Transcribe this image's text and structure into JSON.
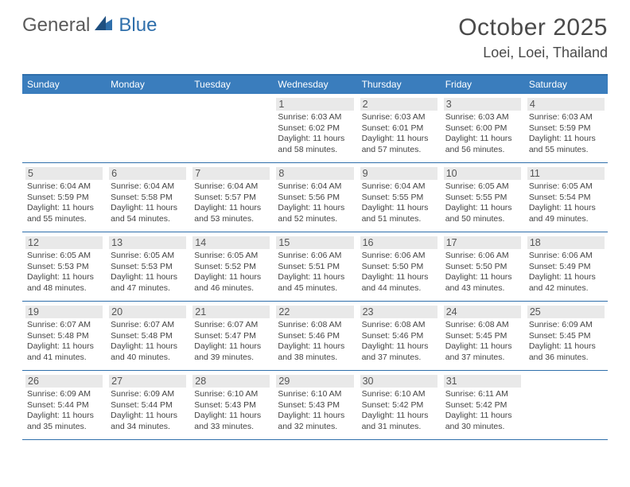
{
  "logo": {
    "part1": "General",
    "part2": "Blue"
  },
  "title": "October 2025",
  "location": "Loei, Loei, Thailand",
  "colors": {
    "header_bg": "#3a7dbd",
    "rule": "#2f6fab",
    "day_num_bg": "#e9e9e9",
    "text": "#444",
    "title_text": "#4a4a4a"
  },
  "weekdays": [
    "Sunday",
    "Monday",
    "Tuesday",
    "Wednesday",
    "Thursday",
    "Friday",
    "Saturday"
  ],
  "weeks": [
    [
      null,
      null,
      null,
      {
        "n": "1",
        "sr": "6:03 AM",
        "ss": "6:02 PM",
        "dl": "11 hours and 58 minutes."
      },
      {
        "n": "2",
        "sr": "6:03 AM",
        "ss": "6:01 PM",
        "dl": "11 hours and 57 minutes."
      },
      {
        "n": "3",
        "sr": "6:03 AM",
        "ss": "6:00 PM",
        "dl": "11 hours and 56 minutes."
      },
      {
        "n": "4",
        "sr": "6:03 AM",
        "ss": "5:59 PM",
        "dl": "11 hours and 55 minutes."
      }
    ],
    [
      {
        "n": "5",
        "sr": "6:04 AM",
        "ss": "5:59 PM",
        "dl": "11 hours and 55 minutes."
      },
      {
        "n": "6",
        "sr": "6:04 AM",
        "ss": "5:58 PM",
        "dl": "11 hours and 54 minutes."
      },
      {
        "n": "7",
        "sr": "6:04 AM",
        "ss": "5:57 PM",
        "dl": "11 hours and 53 minutes."
      },
      {
        "n": "8",
        "sr": "6:04 AM",
        "ss": "5:56 PM",
        "dl": "11 hours and 52 minutes."
      },
      {
        "n": "9",
        "sr": "6:04 AM",
        "ss": "5:55 PM",
        "dl": "11 hours and 51 minutes."
      },
      {
        "n": "10",
        "sr": "6:05 AM",
        "ss": "5:55 PM",
        "dl": "11 hours and 50 minutes."
      },
      {
        "n": "11",
        "sr": "6:05 AM",
        "ss": "5:54 PM",
        "dl": "11 hours and 49 minutes."
      }
    ],
    [
      {
        "n": "12",
        "sr": "6:05 AM",
        "ss": "5:53 PM",
        "dl": "11 hours and 48 minutes."
      },
      {
        "n": "13",
        "sr": "6:05 AM",
        "ss": "5:53 PM",
        "dl": "11 hours and 47 minutes."
      },
      {
        "n": "14",
        "sr": "6:05 AM",
        "ss": "5:52 PM",
        "dl": "11 hours and 46 minutes."
      },
      {
        "n": "15",
        "sr": "6:06 AM",
        "ss": "5:51 PM",
        "dl": "11 hours and 45 minutes."
      },
      {
        "n": "16",
        "sr": "6:06 AM",
        "ss": "5:50 PM",
        "dl": "11 hours and 44 minutes."
      },
      {
        "n": "17",
        "sr": "6:06 AM",
        "ss": "5:50 PM",
        "dl": "11 hours and 43 minutes."
      },
      {
        "n": "18",
        "sr": "6:06 AM",
        "ss": "5:49 PM",
        "dl": "11 hours and 42 minutes."
      }
    ],
    [
      {
        "n": "19",
        "sr": "6:07 AM",
        "ss": "5:48 PM",
        "dl": "11 hours and 41 minutes."
      },
      {
        "n": "20",
        "sr": "6:07 AM",
        "ss": "5:48 PM",
        "dl": "11 hours and 40 minutes."
      },
      {
        "n": "21",
        "sr": "6:07 AM",
        "ss": "5:47 PM",
        "dl": "11 hours and 39 minutes."
      },
      {
        "n": "22",
        "sr": "6:08 AM",
        "ss": "5:46 PM",
        "dl": "11 hours and 38 minutes."
      },
      {
        "n": "23",
        "sr": "6:08 AM",
        "ss": "5:46 PM",
        "dl": "11 hours and 37 minutes."
      },
      {
        "n": "24",
        "sr": "6:08 AM",
        "ss": "5:45 PM",
        "dl": "11 hours and 37 minutes."
      },
      {
        "n": "25",
        "sr": "6:09 AM",
        "ss": "5:45 PM",
        "dl": "11 hours and 36 minutes."
      }
    ],
    [
      {
        "n": "26",
        "sr": "6:09 AM",
        "ss": "5:44 PM",
        "dl": "11 hours and 35 minutes."
      },
      {
        "n": "27",
        "sr": "6:09 AM",
        "ss": "5:44 PM",
        "dl": "11 hours and 34 minutes."
      },
      {
        "n": "28",
        "sr": "6:10 AM",
        "ss": "5:43 PM",
        "dl": "11 hours and 33 minutes."
      },
      {
        "n": "29",
        "sr": "6:10 AM",
        "ss": "5:43 PM",
        "dl": "11 hours and 32 minutes."
      },
      {
        "n": "30",
        "sr": "6:10 AM",
        "ss": "5:42 PM",
        "dl": "11 hours and 31 minutes."
      },
      {
        "n": "31",
        "sr": "6:11 AM",
        "ss": "5:42 PM",
        "dl": "11 hours and 30 minutes."
      },
      null
    ]
  ]
}
